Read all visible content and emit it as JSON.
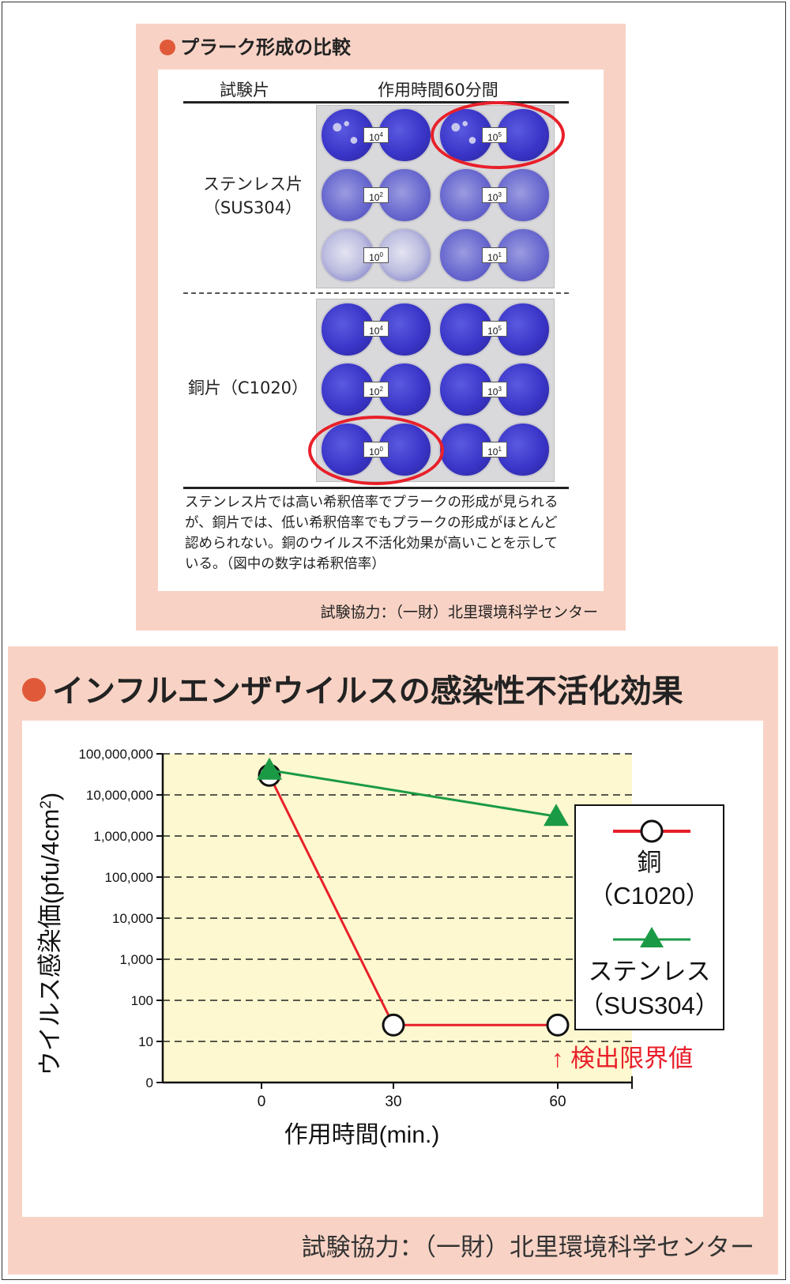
{
  "plaque": {
    "title": "プラーク形成の比較",
    "col_specimen": "試験片",
    "col_time": "作用時間60分間",
    "stainless_label_1": "ステンレス片",
    "stainless_label_2": "（SUS304）",
    "copper_label": "銅片（C1020）",
    "caption": "ステンレス片では高い希釈倍率でプラークの形成が見られるが、銅片では、低い希釈倍率でもプラークの形成がほとんど認められない。銅のウイルス不活化効果が高いことを示している。（図中の数字は希釈倍率）",
    "credit": "試験協力：（一財）北里環境科学センター",
    "dilution_base": "10",
    "stainless_dilutions": [
      "4",
      "5",
      "2",
      "3",
      "0",
      "1"
    ],
    "copper_dilutions": [
      "4",
      "5",
      "2",
      "3",
      "0",
      "1"
    ]
  },
  "chart_title": "インフルエンザウイルスの感染性不活化効果",
  "credit": "試験協力：（一財）北里環境科学センター",
  "chart_data": {
    "type": "line",
    "title": "インフルエンザウイルスの感染性不活化効果",
    "xlabel": "作用時間(min.)",
    "ylabel": "ウイルス感染価(pfu/4cm²)",
    "ylabel_base": "ウイルス感染価(pfu/4cm",
    "ylabel_sup": "2",
    "ylabel_end": ")",
    "y_scale": "log",
    "x_ticks": [
      "0",
      "30",
      "60"
    ],
    "y_ticks": [
      "0",
      "10",
      "100",
      "1,000",
      "10,000",
      "100,000",
      "1,000,000",
      "10,000,000",
      "100,000,000"
    ],
    "x": [
      0,
      30,
      60
    ],
    "series": [
      {
        "name": "銅",
        "name_sub": "（C1020）",
        "values": [
          30000000,
          25,
          25
        ],
        "color": "#e8202a",
        "marker": "circle"
      },
      {
        "name": "ステンレス",
        "name_sub": "（SUS304）",
        "values": [
          40000000,
          null,
          3000000
        ],
        "color": "#1a9a44",
        "marker": "triangle"
      }
    ],
    "annotation": "↑ 検出限界値",
    "annotation_color": "#e8202a",
    "plot_background": "#fdf8cf",
    "grid": "dashed horizontal",
    "legend_position": "right"
  }
}
